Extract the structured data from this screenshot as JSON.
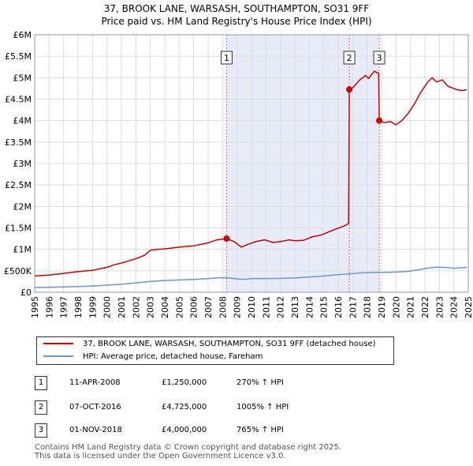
{
  "title": "37, BROOK LANE, WARSASH, SOUTHAMPTON, SO31 9FF",
  "subtitle": "Price paid vs. HM Land Registry's House Price Index (HPI)",
  "colors": {
    "property": "#cc0000",
    "hpi": "#6699cc",
    "shade": "#e8ecf8",
    "marker_line": "#dd6666"
  },
  "legend": {
    "property_label": "37, BROOK LANE, WARSASH, SOUTHAMPTON, SO31 9FF (detached house)",
    "hpi_label": "HPI: Average price, detached house, Fareham"
  },
  "transactions": [
    {
      "num": "1",
      "date": "11-APR-2008",
      "price": "£1,250,000",
      "hpi": "270% ↑ HPI"
    },
    {
      "num": "2",
      "date": "07-OCT-2016",
      "price": "£4,725,000",
      "hpi": "1005% ↑ HPI"
    },
    {
      "num": "3",
      "date": "01-NOV-2018",
      "price": "£4,000,000",
      "hpi": "765% ↑ HPI"
    }
  ],
  "footer": {
    "line1": "Contains HM Land Registry data © Crown copyright and database right 2025.",
    "line2": "This data is licensed under the Open Government Licence v3.0."
  },
  "chart_data": {
    "type": "line",
    "xlim": [
      1995,
      2025
    ],
    "ylim": [
      0,
      6000000
    ],
    "x_ticks": [
      "1995",
      "1996",
      "1997",
      "1998",
      "1999",
      "2000",
      "2001",
      "2002",
      "2003",
      "2004",
      "2005",
      "2006",
      "2007",
      "2008",
      "2009",
      "2010",
      "2011",
      "2012",
      "2013",
      "2014",
      "2015",
      "2016",
      "2017",
      "2018",
      "2019",
      "2020",
      "2021",
      "2022",
      "2023",
      "2024",
      "2025"
    ],
    "y_ticks": [
      {
        "value": 0,
        "label": "£0"
      },
      {
        "value": 500000,
        "label": "£500K"
      },
      {
        "value": 1000000,
        "label": "£1M"
      },
      {
        "value": 1500000,
        "label": "£1.5M"
      },
      {
        "value": 2000000,
        "label": "£2M"
      },
      {
        "value": 2500000,
        "label": "£2.5M"
      },
      {
        "value": 3000000,
        "label": "£3M"
      },
      {
        "value": 3500000,
        "label": "£3.5M"
      },
      {
        "value": 4000000,
        "label": "£4M"
      },
      {
        "value": 4500000,
        "label": "£4.5M"
      },
      {
        "value": 5000000,
        "label": "£5M"
      },
      {
        "value": 5500000,
        "label": "£5.5M"
      },
      {
        "value": 6000000,
        "label": "£6M"
      }
    ],
    "shaded_range": [
      2008.28,
      2018.84
    ],
    "markers": [
      {
        "label": "1",
        "x": 2008.28,
        "y": 1250000
      },
      {
        "label": "2",
        "x": 2016.77,
        "y": 4725000
      },
      {
        "label": "3",
        "x": 2018.84,
        "y": 4000000
      }
    ],
    "series": [
      {
        "name": "37, BROOK LANE, WARSASH, SOUTHAMPTON, SO31 9FF (detached house)",
        "points": [
          [
            1995,
            380000
          ],
          [
            1996,
            400000
          ],
          [
            1997,
            440000
          ],
          [
            1998,
            480000
          ],
          [
            1999,
            510000
          ],
          [
            2000,
            580000
          ],
          [
            2000.5,
            640000
          ],
          [
            2001,
            680000
          ],
          [
            2002,
            780000
          ],
          [
            2002.6,
            860000
          ],
          [
            2003,
            980000
          ],
          [
            2003.5,
            1000000
          ],
          [
            2004,
            1010000
          ],
          [
            2005,
            1050000
          ],
          [
            2006,
            1080000
          ],
          [
            2007,
            1150000
          ],
          [
            2007.6,
            1220000
          ],
          [
            2008.28,
            1250000
          ],
          [
            2008.8,
            1180000
          ],
          [
            2009.3,
            1050000
          ],
          [
            2009.8,
            1120000
          ],
          [
            2010.3,
            1180000
          ],
          [
            2010.9,
            1220000
          ],
          [
            2011.5,
            1160000
          ],
          [
            2012,
            1180000
          ],
          [
            2012.6,
            1220000
          ],
          [
            2013,
            1200000
          ],
          [
            2013.6,
            1210000
          ],
          [
            2014.2,
            1290000
          ],
          [
            2014.8,
            1330000
          ],
          [
            2015.3,
            1400000
          ],
          [
            2015.9,
            1480000
          ],
          [
            2016.4,
            1540000
          ],
          [
            2016.72,
            1600000
          ],
          [
            2016.77,
            4725000
          ],
          [
            2017,
            4760000
          ],
          [
            2017.5,
            4950000
          ],
          [
            2017.9,
            5050000
          ],
          [
            2018.1,
            4980000
          ],
          [
            2018.5,
            5150000
          ],
          [
            2018.8,
            5100000
          ],
          [
            2018.84,
            4000000
          ],
          [
            2019.2,
            3950000
          ],
          [
            2019.6,
            3980000
          ],
          [
            2020,
            3900000
          ],
          [
            2020.4,
            4000000
          ],
          [
            2020.8,
            4150000
          ],
          [
            2021.3,
            4400000
          ],
          [
            2021.7,
            4650000
          ],
          [
            2022.2,
            4900000
          ],
          [
            2022.5,
            5000000
          ],
          [
            2022.8,
            4900000
          ],
          [
            2023.2,
            4950000
          ],
          [
            2023.6,
            4800000
          ],
          [
            2024.2,
            4720000
          ],
          [
            2024.6,
            4700000
          ],
          [
            2024.9,
            4720000
          ]
        ]
      },
      {
        "name": "HPI: Average price, detached house, Fareham",
        "points": [
          [
            1995,
            110000
          ],
          [
            1996,
            115000
          ],
          [
            1997,
            123000
          ],
          [
            1998,
            133000
          ],
          [
            1999,
            145000
          ],
          [
            2000,
            165000
          ],
          [
            2001,
            185000
          ],
          [
            2002,
            215000
          ],
          [
            2003,
            250000
          ],
          [
            2004,
            275000
          ],
          [
            2005,
            285000
          ],
          [
            2006,
            298000
          ],
          [
            2007,
            318000
          ],
          [
            2007.7,
            335000
          ],
          [
            2008.28,
            338000
          ],
          [
            2008.9,
            315000
          ],
          [
            2009.4,
            300000
          ],
          [
            2010,
            318000
          ],
          [
            2011,
            320000
          ],
          [
            2012,
            323000
          ],
          [
            2013,
            332000
          ],
          [
            2014,
            355000
          ],
          [
            2015,
            380000
          ],
          [
            2016,
            410000
          ],
          [
            2016.77,
            428000
          ],
          [
            2017.5,
            450000
          ],
          [
            2018,
            458000
          ],
          [
            2018.84,
            462000
          ],
          [
            2019.5,
            465000
          ],
          [
            2020,
            470000
          ],
          [
            2020.8,
            485000
          ],
          [
            2021.5,
            520000
          ],
          [
            2022.3,
            565000
          ],
          [
            2022.8,
            585000
          ],
          [
            2023.5,
            575000
          ],
          [
            2024,
            560000
          ],
          [
            2024.5,
            570000
          ],
          [
            2024.9,
            578000
          ]
        ]
      }
    ]
  }
}
